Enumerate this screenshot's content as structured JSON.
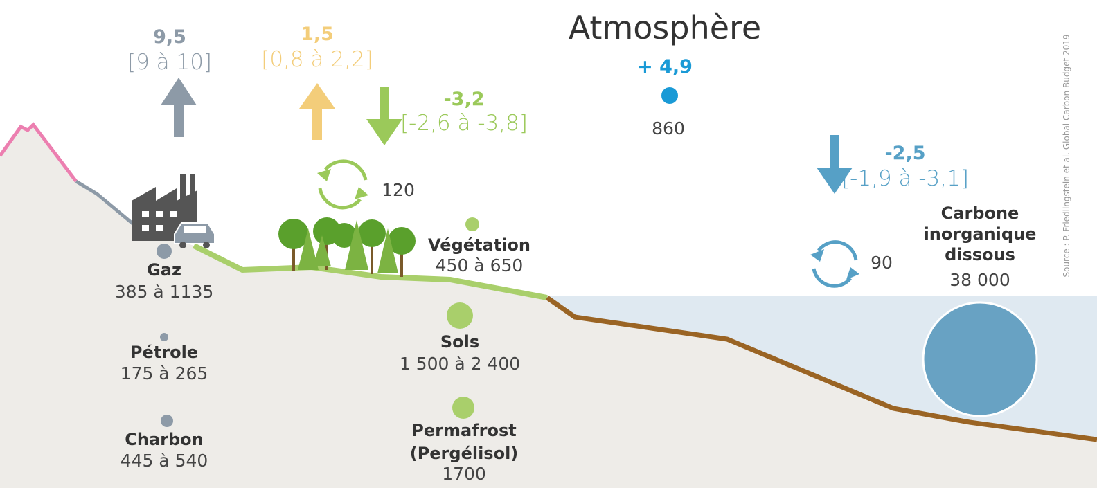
{
  "atmosphere": {
    "title": "Atmosphère",
    "flux": "+ 4,9",
    "stock": "860"
  },
  "fluxes": {
    "fossil": {
      "value": "9,5",
      "range": "[9 à 10]"
    },
    "land_use": {
      "value": "1,5",
      "range": "[0,8 à 2,2]"
    },
    "land_sink": {
      "value": "-3,2",
      "range": "[-2,6 à -3,8]"
    },
    "ocean_sink": {
      "value": "-2,5",
      "range": "[-1,9 à -3,1]"
    }
  },
  "cycles": {
    "land": "120",
    "ocean": "90"
  },
  "reservoirs": [
    {
      "name": [
        "Gaz"
      ],
      "range": "385 à 1135"
    },
    {
      "name": [
        "Pétrole"
      ],
      "range": "175 à 265"
    },
    {
      "name": [
        "Charbon"
      ],
      "range": "445 à 540"
    },
    {
      "name": [
        "Végétation"
      ],
      "range": "450 à 650"
    },
    {
      "name": [
        "Sols"
      ],
      "range": "1 500 à 2 400"
    },
    {
      "name": [
        "Permafrost",
        "(Pergélisol)"
      ],
      "range": "1700"
    },
    {
      "name": [
        "Carbone",
        "inorganique",
        "dissous"
      ],
      "range": "38 000"
    }
  ],
  "source": "Source : P. Friedlingstein et al. Global Carbon Budget 2019"
}
